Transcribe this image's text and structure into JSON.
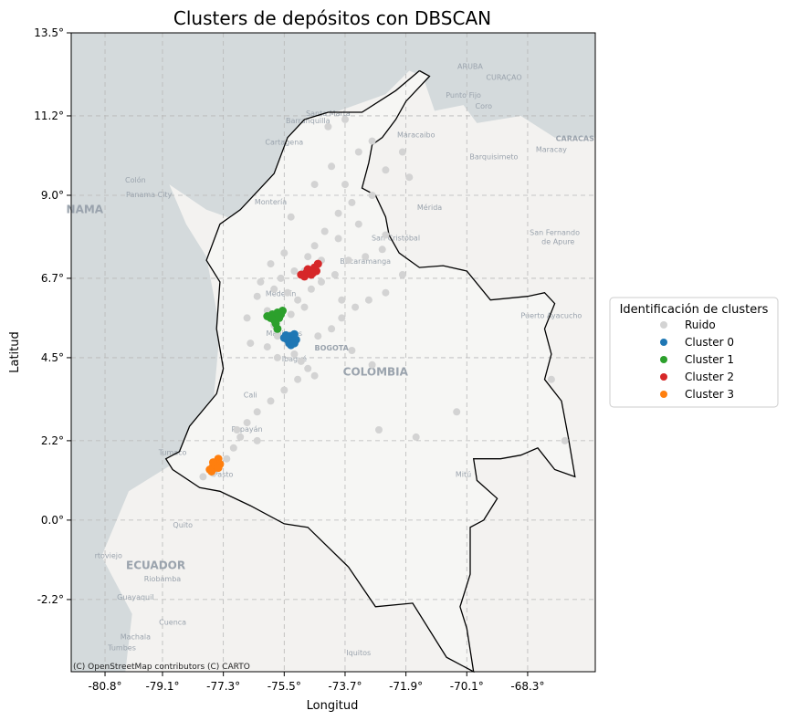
{
  "chart_data": {
    "type": "scatter",
    "title": "Clusters de depósitos con DBSCAN",
    "xlabel": "Longitud",
    "ylabel": "Latitud",
    "xlim": [
      -81.8,
      -66.3
    ],
    "ylim": [
      -4.2,
      13.5
    ],
    "xticks": [
      -80.8,
      -79.1,
      -77.3,
      -75.5,
      -73.7,
      -71.9,
      -70.1,
      -68.3
    ],
    "xtick_labels": [
      "-80.8°",
      "-79.1°",
      "-77.3°",
      "-75.5°",
      "-73.7°",
      "-71.9°",
      "-70.1°",
      "-68.3°"
    ],
    "yticks": [
      13.5,
      11.2,
      9.0,
      6.7,
      4.5,
      2.2,
      0.0,
      -2.2
    ],
    "ytick_labels": [
      "13.5°",
      "11.2°",
      "9.0°",
      "6.7°",
      "4.5°",
      "2.2°",
      "0.0°",
      "-2.2°"
    ],
    "grid": true,
    "legend": {
      "title": "Identificación de clusters",
      "placement": "outside-right"
    },
    "attribution": "(C) OpenStreetMap contributors (C) CARTO",
    "basemap_labels": [
      {
        "text": "ARUBA",
        "lon": -70.0,
        "lat": 12.5
      },
      {
        "text": "CURAÇAO",
        "lon": -69.0,
        "lat": 12.2
      },
      {
        "text": "Punto Fijo",
        "lon": -70.2,
        "lat": 11.7
      },
      {
        "text": "Coro",
        "lon": -69.6,
        "lat": 11.4
      },
      {
        "text": "Barranquilla",
        "lon": -74.8,
        "lat": 11.0
      },
      {
        "text": "Santa Marta",
        "lon": -74.2,
        "lat": 11.2
      },
      {
        "text": "Cartagena",
        "lon": -75.5,
        "lat": 10.4
      },
      {
        "text": "Maracaibo",
        "lon": -71.6,
        "lat": 10.6
      },
      {
        "text": "Barquisimeto",
        "lon": -69.3,
        "lat": 10.0
      },
      {
        "text": "CARACAS",
        "lon": -66.9,
        "lat": 10.5
      },
      {
        "text": "Maracay",
        "lon": -67.6,
        "lat": 10.2
      },
      {
        "text": "Colón",
        "lon": -79.9,
        "lat": 9.35
      },
      {
        "text": "Panama City",
        "lon": -79.5,
        "lat": 8.95
      },
      {
        "text": "NAMA",
        "lon": -81.4,
        "lat": 8.5
      },
      {
        "text": "Montería",
        "lon": -75.9,
        "lat": 8.75
      },
      {
        "text": "Mérida",
        "lon": -71.2,
        "lat": 8.6
      },
      {
        "text": "San Cristóbal",
        "lon": -72.2,
        "lat": 7.75
      },
      {
        "text": "San Fernando",
        "lon": -67.5,
        "lat": 7.9
      },
      {
        "text": "de Apure",
        "lon": -67.4,
        "lat": 7.65
      },
      {
        "text": "Bucaramanga",
        "lon": -73.1,
        "lat": 7.1
      },
      {
        "text": "Medellín",
        "lon": -75.6,
        "lat": 6.2
      },
      {
        "text": "Puerto Ayacucho",
        "lon": -67.6,
        "lat": 5.6
      },
      {
        "text": "Manizales",
        "lon": -75.5,
        "lat": 5.1
      },
      {
        "text": "BOGOTA",
        "lon": -74.1,
        "lat": 4.7
      },
      {
        "text": "Ibagué",
        "lon": -75.2,
        "lat": 4.4
      },
      {
        "text": "COLOMBIA",
        "lon": -72.8,
        "lat": 4.0
      },
      {
        "text": "Cali",
        "lon": -76.5,
        "lat": 3.4
      },
      {
        "text": "Popayán",
        "lon": -76.6,
        "lat": 2.45
      },
      {
        "text": "Tumaco",
        "lon": -78.8,
        "lat": 1.8
      },
      {
        "text": "Pasto",
        "lon": -77.3,
        "lat": 1.2
      },
      {
        "text": "Mitú",
        "lon": -70.2,
        "lat": 1.2
      },
      {
        "text": "Quito",
        "lon": -78.5,
        "lat": -0.2
      },
      {
        "text": "rtoviejo",
        "lon": -80.7,
        "lat": -1.05
      },
      {
        "text": "ECUADOR",
        "lon": -79.3,
        "lat": -1.35
      },
      {
        "text": "Riobamba",
        "lon": -79.1,
        "lat": -1.7
      },
      {
        "text": "Guayaquil",
        "lon": -79.9,
        "lat": -2.2
      },
      {
        "text": "Cuenca",
        "lon": -78.8,
        "lat": -2.9
      },
      {
        "text": "Machala",
        "lon": -79.9,
        "lat": -3.3
      },
      {
        "text": "Tumbes",
        "lon": -80.3,
        "lat": -3.6
      },
      {
        "text": "Iquitos",
        "lon": -73.3,
        "lat": -3.75
      }
    ],
    "border_outline": [
      [
        -71.5,
        12.45
      ],
      [
        -71.2,
        12.3
      ],
      [
        -71.9,
        11.6
      ],
      [
        -72.2,
        11.1
      ],
      [
        -72.6,
        10.6
      ],
      [
        -72.9,
        10.4
      ],
      [
        -73.0,
        9.9
      ],
      [
        -73.2,
        9.2
      ],
      [
        -72.8,
        9.0
      ],
      [
        -72.5,
        8.4
      ],
      [
        -72.4,
        7.9
      ],
      [
        -72.1,
        7.4
      ],
      [
        -71.5,
        7.0
      ],
      [
        -70.8,
        7.05
      ],
      [
        -70.1,
        6.9
      ],
      [
        -69.4,
        6.1
      ],
      [
        -68.3,
        6.2
      ],
      [
        -67.8,
        6.3
      ],
      [
        -67.5,
        6.0
      ],
      [
        -67.8,
        5.3
      ],
      [
        -67.6,
        4.6
      ],
      [
        -67.8,
        3.9
      ],
      [
        -67.3,
        3.3
      ],
      [
        -67.1,
        2.3
      ],
      [
        -66.9,
        1.2
      ],
      [
        -67.5,
        1.4
      ],
      [
        -68.0,
        2.0
      ],
      [
        -68.5,
        1.8
      ],
      [
        -69.1,
        1.7
      ],
      [
        -69.9,
        1.7
      ],
      [
        -69.8,
        1.1
      ],
      [
        -69.2,
        0.6
      ],
      [
        -69.6,
        0.0
      ],
      [
        -70.0,
        -0.2
      ],
      [
        -70.0,
        -1.5
      ],
      [
        -70.3,
        -2.4
      ],
      [
        -70.1,
        -3.0
      ],
      [
        -69.9,
        -4.2
      ],
      [
        -70.7,
        -3.8
      ],
      [
        -71.7,
        -2.3
      ],
      [
        -72.8,
        -2.4
      ],
      [
        -73.6,
        -1.3
      ],
      [
        -74.8,
        -0.2
      ],
      [
        -75.5,
        -0.1
      ],
      [
        -76.5,
        0.4
      ],
      [
        -77.4,
        0.8
      ],
      [
        -78.0,
        0.9
      ],
      [
        -78.8,
        1.4
      ],
      [
        -79.0,
        1.7
      ],
      [
        -78.6,
        1.9
      ],
      [
        -78.3,
        2.6
      ],
      [
        -77.5,
        3.5
      ],
      [
        -77.3,
        4.2
      ],
      [
        -77.5,
        5.3
      ],
      [
        -77.4,
        6.6
      ],
      [
        -77.8,
        7.2
      ],
      [
        -77.4,
        8.2
      ],
      [
        -76.8,
        8.6
      ],
      [
        -76.2,
        9.2
      ],
      [
        -75.8,
        9.6
      ],
      [
        -75.4,
        10.6
      ],
      [
        -74.9,
        11.1
      ],
      [
        -74.2,
        11.3
      ],
      [
        -73.2,
        11.3
      ],
      [
        -72.2,
        11.9
      ],
      [
        -71.5,
        12.45
      ]
    ],
    "series": [
      {
        "name": "Ruido",
        "color": "#d3d3d3",
        "points": [
          [
            -74.2,
            10.9
          ],
          [
            -73.7,
            11.1
          ],
          [
            -72.9,
            10.5
          ],
          [
            -72.5,
            9.7
          ],
          [
            -72.9,
            9.0
          ],
          [
            -73.5,
            8.8
          ],
          [
            -73.9,
            8.5
          ],
          [
            -74.3,
            8.0
          ],
          [
            -74.6,
            7.6
          ],
          [
            -74.8,
            7.3
          ],
          [
            -75.2,
            6.9
          ],
          [
            -75.6,
            6.7
          ],
          [
            -75.8,
            6.4
          ],
          [
            -75.4,
            6.3
          ],
          [
            -75.1,
            6.1
          ],
          [
            -74.9,
            5.9
          ],
          [
            -74.7,
            6.4
          ],
          [
            -74.4,
            6.6
          ],
          [
            -74.0,
            6.8
          ],
          [
            -73.6,
            7.2
          ],
          [
            -73.1,
            7.3
          ],
          [
            -72.6,
            7.5
          ],
          [
            -72.5,
            7.9
          ],
          [
            -73.3,
            8.2
          ],
          [
            -73.9,
            7.8
          ],
          [
            -75.5,
            7.4
          ],
          [
            -75.9,
            7.1
          ],
          [
            -76.2,
            6.6
          ],
          [
            -76.3,
            6.2
          ],
          [
            -76.0,
            5.8
          ],
          [
            -75.8,
            5.4
          ],
          [
            -75.7,
            5.1
          ],
          [
            -75.4,
            4.9
          ],
          [
            -75.2,
            4.6
          ],
          [
            -75.0,
            4.4
          ],
          [
            -74.8,
            4.2
          ],
          [
            -74.6,
            4.0
          ],
          [
            -75.1,
            3.9
          ],
          [
            -75.5,
            3.6
          ],
          [
            -75.9,
            3.3
          ],
          [
            -76.3,
            3.0
          ],
          [
            -76.6,
            2.7
          ],
          [
            -76.8,
            2.3
          ],
          [
            -77.0,
            2.0
          ],
          [
            -77.2,
            1.7
          ],
          [
            -77.6,
            1.3
          ],
          [
            -77.9,
            1.2
          ],
          [
            -76.3,
            2.2
          ],
          [
            -74.5,
            5.1
          ],
          [
            -74.1,
            5.3
          ],
          [
            -73.8,
            5.6
          ],
          [
            -73.4,
            5.9
          ],
          [
            -73.0,
            6.1
          ],
          [
            -72.5,
            6.3
          ],
          [
            -72.0,
            6.8
          ],
          [
            -71.8,
            9.5
          ],
          [
            -72.0,
            10.2
          ],
          [
            -73.3,
            10.2
          ],
          [
            -74.6,
            9.3
          ],
          [
            -75.3,
            8.4
          ],
          [
            -74.1,
            9.8
          ],
          [
            -73.7,
            9.3
          ],
          [
            -72.7,
            2.5
          ],
          [
            -71.6,
            2.3
          ],
          [
            -70.4,
            3.0
          ],
          [
            -67.6,
            3.9
          ],
          [
            -67.2,
            2.2
          ],
          [
            -76.0,
            4.8
          ],
          [
            -75.7,
            4.5
          ],
          [
            -75.3,
            5.7
          ],
          [
            -74.9,
            6.9
          ],
          [
            -74.4,
            7.2
          ],
          [
            -73.8,
            6.1
          ],
          [
            -73.5,
            4.7
          ],
          [
            -72.9,
            4.3
          ],
          [
            -76.6,
            5.6
          ],
          [
            -76.5,
            4.9
          ],
          [
            -76.9,
            2.5
          ]
        ]
      },
      {
        "name": "Cluster 0",
        "color": "#1f77b4",
        "points": [
          [
            -75.5,
            5.05
          ],
          [
            -75.4,
            5.0
          ],
          [
            -75.3,
            5.1
          ],
          [
            -75.25,
            4.95
          ],
          [
            -75.35,
            4.9
          ],
          [
            -75.2,
            5.15
          ],
          [
            -75.15,
            5.0
          ],
          [
            -75.45,
            5.12
          ],
          [
            -75.3,
            4.85
          ],
          [
            -75.2,
            4.9
          ]
        ]
      },
      {
        "name": "Cluster 1",
        "color": "#2ca02c",
        "points": [
          [
            -76.0,
            5.65
          ],
          [
            -75.85,
            5.7
          ],
          [
            -75.7,
            5.75
          ],
          [
            -75.55,
            5.8
          ],
          [
            -75.8,
            5.55
          ],
          [
            -75.65,
            5.6
          ],
          [
            -75.9,
            5.6
          ],
          [
            -75.75,
            5.45
          ],
          [
            -75.7,
            5.3
          ],
          [
            -75.6,
            5.7
          ]
        ]
      },
      {
        "name": "Cluster 2",
        "color": "#d62728",
        "points": [
          [
            -75.0,
            6.8
          ],
          [
            -74.85,
            6.85
          ],
          [
            -74.75,
            6.9
          ],
          [
            -74.6,
            7.0
          ],
          [
            -74.5,
            7.1
          ],
          [
            -74.9,
            6.75
          ],
          [
            -74.7,
            6.8
          ],
          [
            -74.55,
            6.9
          ],
          [
            -74.8,
            6.95
          ],
          [
            -74.65,
            6.85
          ]
        ]
      },
      {
        "name": "Cluster 3",
        "color": "#ff7f0e",
        "points": [
          [
            -77.7,
            1.4
          ],
          [
            -77.6,
            1.5
          ],
          [
            -77.5,
            1.6
          ],
          [
            -77.45,
            1.7
          ],
          [
            -77.55,
            1.45
          ],
          [
            -77.4,
            1.55
          ],
          [
            -77.65,
            1.35
          ],
          [
            -77.5,
            1.5
          ],
          [
            -77.6,
            1.6
          ],
          [
            -77.45,
            1.45
          ]
        ]
      }
    ]
  }
}
